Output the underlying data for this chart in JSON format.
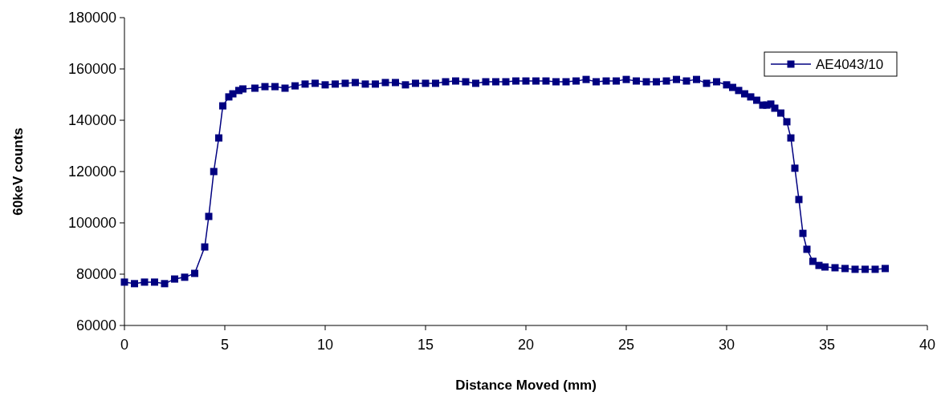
{
  "chart_data": {
    "type": "line",
    "xlabel": "Distance Moved (mm)",
    "ylabel": "60keV counts",
    "xlim": [
      0,
      40
    ],
    "xticks": [
      0,
      5,
      10,
      15,
      20,
      25,
      30,
      35,
      40
    ],
    "ylim": [
      60000,
      180000
    ],
    "yticks": [
      60000,
      80000,
      100000,
      120000,
      140000,
      160000,
      180000
    ],
    "grid": false,
    "legend": "top right",
    "marker": "square",
    "line_style": "solid",
    "series": [
      {
        "name": "AE4043/10",
        "color": "#000080",
        "x": [
          0,
          0.5,
          1,
          1.5,
          2,
          2.5,
          3,
          3.5,
          4,
          4.2,
          4.45,
          4.7,
          4.9,
          5.2,
          5.4,
          5.7,
          5.9,
          6.5,
          7,
          7.5,
          8,
          8.5,
          9,
          9.5,
          10,
          10.5,
          11,
          11.5,
          12,
          12.5,
          13,
          13.5,
          14,
          14.5,
          15,
          15.5,
          16,
          16.5,
          17,
          17.5,
          18,
          18.5,
          19,
          19.5,
          20,
          20.5,
          21,
          21.5,
          22,
          22.5,
          23,
          23.5,
          24,
          24.5,
          25,
          25.5,
          26,
          26.5,
          27,
          27.5,
          28,
          28.5,
          29,
          29.5,
          30,
          30.3,
          30.6,
          30.9,
          31.2,
          31.5,
          31.8,
          32,
          32.2,
          32.4,
          32.7,
          33,
          33.2,
          33.4,
          33.6,
          33.8,
          34,
          34.3,
          34.6,
          34.9,
          35.4,
          35.9,
          36.4,
          36.9,
          37.4,
          37.9
        ],
        "values": [
          76900,
          76300,
          76900,
          76900,
          76300,
          78100,
          78800,
          80300,
          90600,
          102500,
          120000,
          133100,
          145600,
          149100,
          150300,
          151600,
          152200,
          152500,
          153100,
          153100,
          152500,
          153400,
          154100,
          154400,
          153800,
          154100,
          154400,
          154700,
          154100,
          154100,
          154700,
          154700,
          153800,
          154400,
          154400,
          154400,
          155000,
          155300,
          155000,
          154400,
          155000,
          155000,
          155000,
          155300,
          155300,
          155300,
          155300,
          155000,
          155000,
          155300,
          155900,
          155000,
          155300,
          155300,
          155900,
          155300,
          155000,
          155000,
          155300,
          155900,
          155300,
          155900,
          154400,
          155000,
          153800,
          152800,
          151600,
          150300,
          149100,
          147800,
          145900,
          145900,
          146300,
          144700,
          142800,
          139400,
          133100,
          121300,
          109100,
          95900,
          89700,
          85000,
          83400,
          82800,
          82500,
          82200,
          81900,
          81900,
          81900,
          82200
        ]
      }
    ]
  }
}
